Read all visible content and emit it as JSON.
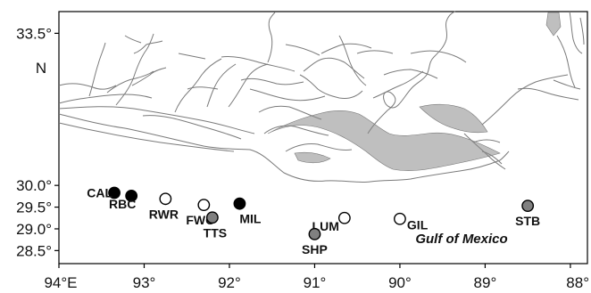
{
  "map": {
    "lon_range": [
      -94.0,
      -87.8
    ],
    "lat_range": [
      28.2,
      34.0
    ],
    "x_ticks": [
      {
        "value": -94,
        "label": "94°E"
      },
      {
        "value": -93,
        "label": "93°"
      },
      {
        "value": -92,
        "label": "92°"
      },
      {
        "value": -91,
        "label": "91°"
      },
      {
        "value": -90,
        "label": "90°"
      },
      {
        "value": -89,
        "label": "89°"
      },
      {
        "value": -88,
        "label": "88°"
      }
    ],
    "y_ticks": [
      {
        "value": 28.5,
        "label": "28.5°"
      },
      {
        "value": 29.0,
        "label": "29.0°"
      },
      {
        "value": 29.5,
        "label": "29.5°"
      },
      {
        "value": 30.0,
        "label": "30.0°"
      },
      {
        "value": 33.5,
        "label": "33.5°"
      }
    ],
    "y_axis_unit": "N",
    "water_label": "Gulf of Mexico",
    "colors": {
      "black": "#000000",
      "white": "#ffffff",
      "gray": "#808080",
      "coast": "#7a7a7a"
    },
    "sites": [
      {
        "name": "CAL",
        "lon": -93.35,
        "lat": 29.83,
        "fill": "black"
      },
      {
        "name": "RBC",
        "lon": -93.15,
        "lat": 29.76,
        "fill": "black"
      },
      {
        "name": "RWR",
        "lon": -92.75,
        "lat": 29.69,
        "fill": "white"
      },
      {
        "name": "FWC",
        "lon": -92.3,
        "lat": 29.55,
        "fill": "white"
      },
      {
        "name": "MIL",
        "lon": -91.88,
        "lat": 29.58,
        "fill": "black"
      },
      {
        "name": "TTS",
        "lon": -92.2,
        "lat": 29.26,
        "fill": "gray"
      },
      {
        "name": "LUM",
        "lon": -90.65,
        "lat": 29.25,
        "fill": "white"
      },
      {
        "name": "GIL",
        "lon": -90.0,
        "lat": 29.23,
        "fill": "white"
      },
      {
        "name": "SHP",
        "lon": -91.0,
        "lat": 28.88,
        "fill": "gray"
      },
      {
        "name": "STB",
        "lon": -88.5,
        "lat": 29.53,
        "fill": "gray"
      }
    ]
  }
}
